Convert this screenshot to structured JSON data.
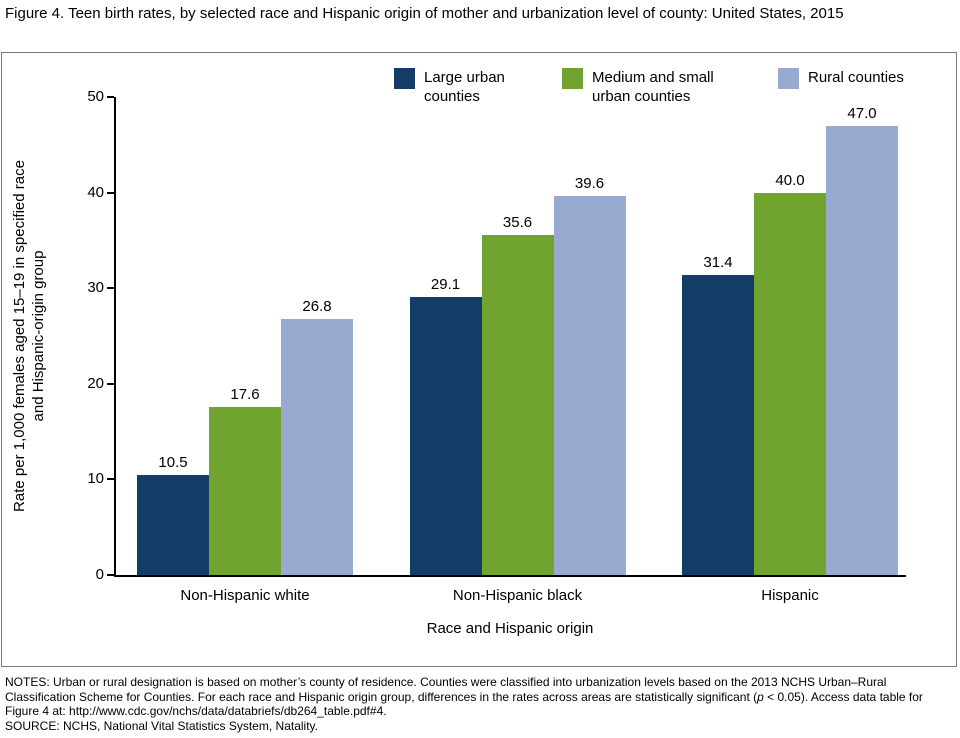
{
  "title": "Figure 4. Teen birth rates, by selected race and Hispanic origin of mother and urbanization level of county: United States, 2015",
  "legend": [
    {
      "label": "Large urban counties",
      "color": "#133d66"
    },
    {
      "label": "Medium and small urban counties",
      "color": "#70a42f"
    },
    {
      "label": "Rural counties",
      "color": "#98aacf"
    }
  ],
  "chart_data": {
    "type": "bar",
    "categories": [
      "Non-Hispanic white",
      "Non-Hispanic black",
      "Hispanic"
    ],
    "series": [
      {
        "name": "Large urban counties",
        "color": "#133d66",
        "values": [
          10.5,
          29.1,
          31.4
        ]
      },
      {
        "name": "Medium and small urban counties",
        "color": "#70a42f",
        "values": [
          17.6,
          35.6,
          40.0
        ]
      },
      {
        "name": "Rural counties",
        "color": "#98aacf",
        "values": [
          26.8,
          39.6,
          47.0
        ]
      }
    ],
    "title": "Figure 4. Teen birth rates, by selected race and Hispanic origin of mother and urbanization level of county: United States, 2015",
    "xlabel": "Race and Hispanic origin",
    "ylabel": "Rate per 1,000 females aged 15–19 in specified race and Hispanic-origin group",
    "ylim": [
      0,
      50
    ],
    "yticks": [
      0,
      10,
      20,
      30,
      40,
      50
    ],
    "grid": false,
    "legend_position": "top",
    "value_labels": true
  },
  "notes": {
    "prefix": "NOTES: Urban or rural designation is based on mother’s county of residence. Counties were classified into urbanization levels based on the 2013 NCHS Urban–Rural Classification Scheme for Counties. For each race and Hispanic origin group, differences in the rates across areas are statistically significant (",
    "italic": "p",
    "suffix": " < 0.05). Access data table for Figure 4 at: http://www.cdc.gov/nchs/data/databriefs/db264_table.pdf#4.",
    "source": "SOURCE: NCHS, National Vital Statistics System, Natality."
  }
}
